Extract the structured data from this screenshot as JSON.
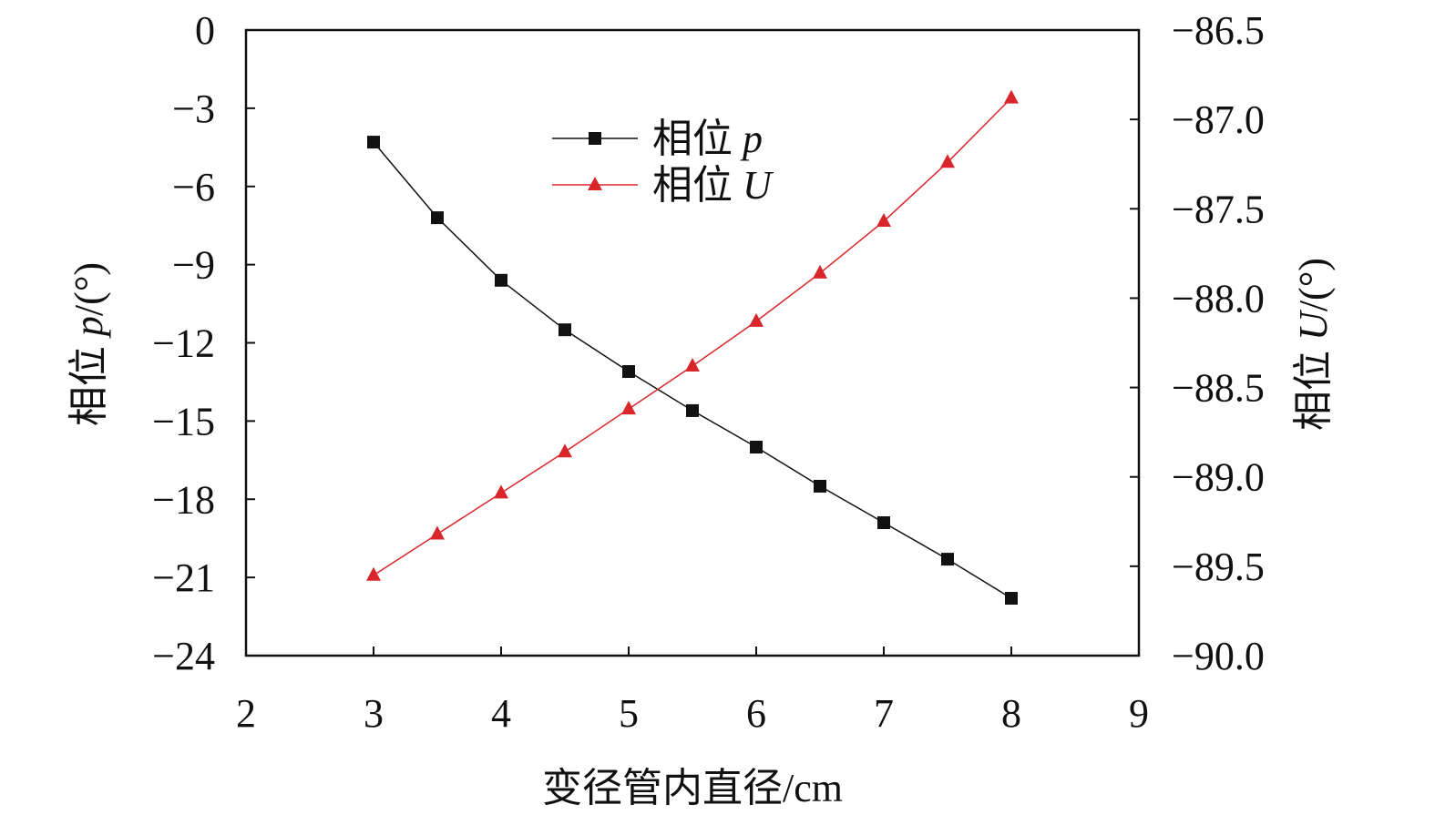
{
  "chart_data": {
    "type": "line",
    "title": "",
    "xlabel": "变径管内直径/cm",
    "ylabel_left": {
      "prefix": "相位 ",
      "var": "p",
      "suffix": "/(°)"
    },
    "ylabel_right": {
      "prefix": "相位 ",
      "var": "U",
      "suffix": "/(°)"
    },
    "xlim": [
      2,
      9
    ],
    "ylim_left": [
      -24,
      0
    ],
    "ylim_right": [
      -90.0,
      -86.5
    ],
    "x_ticks": [
      "2",
      "3",
      "4",
      "5",
      "6",
      "7",
      "8",
      "9"
    ],
    "y_left_ticks": [
      "0",
      "−3",
      "−6",
      "−9",
      "−12",
      "−15",
      "−18",
      "−21",
      "−24"
    ],
    "y_right_ticks": [
      "−86.5",
      "−87.0",
      "−87.5",
      "−88.0",
      "−88.5",
      "−89.0",
      "−89.5",
      "−90.0"
    ],
    "grid": false,
    "legend_position": "top-center",
    "x": [
      3,
      3.5,
      4,
      4.5,
      5,
      5.5,
      6,
      6.5,
      7,
      7.5,
      8
    ],
    "series": [
      {
        "name": "相位 p",
        "name_prefix": "相位 ",
        "name_var": "p",
        "axis": "left",
        "marker": "square",
        "color": "#111111",
        "values": [
          -4.3,
          -7.2,
          -9.6,
          -11.5,
          -13.1,
          -14.6,
          -16.0,
          -17.5,
          -18.9,
          -20.3,
          -21.8
        ]
      },
      {
        "name": "相位 U",
        "name_prefix": "相位 ",
        "name_var": "U",
        "axis": "right",
        "marker": "triangle",
        "color": "#d9262b",
        "values": [
          -89.55,
          -89.32,
          -89.09,
          -88.86,
          -88.62,
          -88.38,
          -88.13,
          -87.86,
          -87.57,
          -87.24,
          -86.88
        ]
      }
    ]
  }
}
